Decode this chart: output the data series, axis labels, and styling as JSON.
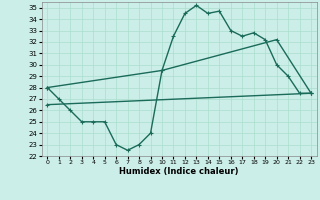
{
  "xlabel": "Humidex (Indice chaleur)",
  "background_color": "#cceee8",
  "grid_color": "#aaddcc",
  "line_color": "#1a6b5a",
  "xlim": [
    -0.5,
    23.5
  ],
  "ylim": [
    22,
    35.5
  ],
  "xticks": [
    0,
    1,
    2,
    3,
    4,
    5,
    6,
    7,
    8,
    9,
    10,
    11,
    12,
    13,
    14,
    15,
    16,
    17,
    18,
    19,
    20,
    21,
    22,
    23
  ],
  "yticks": [
    22,
    23,
    24,
    25,
    26,
    27,
    28,
    29,
    30,
    31,
    32,
    33,
    34,
    35
  ],
  "line1_x": [
    0,
    1,
    2,
    3,
    4,
    5,
    6,
    7,
    8,
    9,
    10,
    11,
    12,
    13,
    14,
    15,
    16,
    17,
    18,
    19,
    20,
    21,
    22,
    23
  ],
  "line1_y": [
    28,
    27,
    26,
    25,
    25,
    25,
    23,
    22.5,
    23,
    24,
    29.5,
    32.5,
    34.5,
    35.2,
    34.5,
    34.7,
    33,
    32.5,
    32.8,
    32.2,
    30,
    29,
    27.5,
    27.5
  ],
  "line2_x": [
    0,
    10,
    20,
    23
  ],
  "line2_y": [
    28,
    29.5,
    32.2,
    27.5
  ],
  "line3_x": [
    0,
    23
  ],
  "line3_y": [
    26.5,
    27.5
  ],
  "linewidth": 1.0,
  "markersize": 3.0
}
